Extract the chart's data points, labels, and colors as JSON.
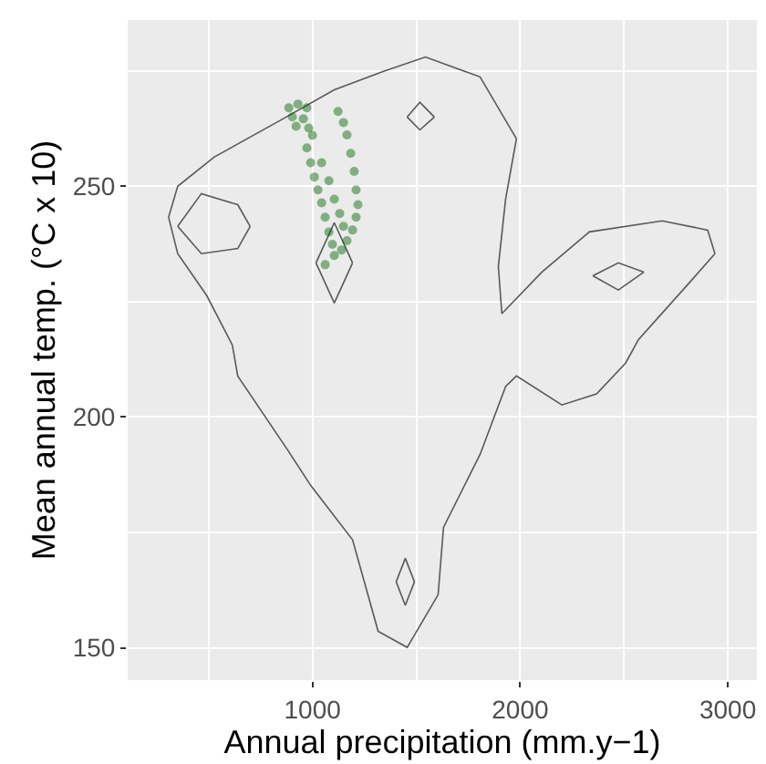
{
  "chart_data": {
    "type": "line",
    "xlabel": "Annual precipitation (mm.y−1)",
    "ylabel": "Mean annual temp. (°C x 10)",
    "xlim": [
      110,
      3140
    ],
    "ylim": [
      143,
      286
    ],
    "xticks": [
      1000,
      2000,
      3000
    ],
    "yticks": [
      150,
      200,
      250
    ],
    "grid": true,
    "series": [
      {
        "color": "#595959",
        "x": [
          307,
          351,
          526,
          842,
          1105,
          1342,
          1544,
          1807,
          1982
        ],
        "values": [
          243.3,
          250,
          256.3,
          264.2,
          270.9,
          274.9,
          278,
          273.7,
          260.3
        ]
      },
      {
        "color": "#595959",
        "x": [
          1982,
          1930,
          1895,
          1912,
          2105,
          2333,
          2684,
          2903,
          2938
        ],
        "values": [
          260.3,
          247.2,
          232.6,
          222.4,
          231.4,
          240.1,
          242.5,
          240.5,
          235.4
        ]
      },
      {
        "color": "#595959",
        "x": [
          307,
          351,
          491,
          614,
          640,
          877,
          991,
          1193,
          1316,
          1456,
          1605,
          1631,
          1807,
          1930,
          1982,
          2201,
          2368,
          2508,
          2570,
          2807,
          2938
        ],
        "values": [
          243.3,
          235.4,
          226.3,
          215.6,
          208.9,
          193.1,
          185.2,
          173.4,
          153.6,
          150.1,
          161.5,
          176.1,
          191.9,
          206.6,
          208.9,
          202.6,
          205,
          211.7,
          216.8,
          228.7,
          235.4
        ]
      },
      {
        "color": "#595959",
        "x": [
          2350,
          2473,
          2596
        ],
        "values": [
          230.6,
          233.4,
          231.4
        ]
      },
      {
        "color": "#595959",
        "x": [
          2350,
          2473,
          2596
        ],
        "values": [
          230.6,
          227.5,
          231.4
        ]
      },
      {
        "color": "#595959",
        "x": [
          351,
          465,
          640,
          700
        ],
        "values": [
          241.3,
          248.4,
          246,
          241.3
        ]
      },
      {
        "color": "#595959",
        "x": [
          351,
          465,
          640,
          700
        ],
        "values": [
          241.3,
          235.4,
          236.5,
          241.3
        ]
      },
      {
        "color": "#595959",
        "x": [
          1456,
          1517,
          1587
        ],
        "values": [
          265,
          268.2,
          265
        ]
      },
      {
        "color": "#595959",
        "x": [
          1456,
          1517,
          1587
        ],
        "values": [
          265,
          262.2,
          265
        ]
      },
      {
        "color": "#595959",
        "x": [
          1403,
          1447,
          1491
        ],
        "values": [
          164.3,
          169.4,
          164.3
        ]
      },
      {
        "color": "#595959",
        "x": [
          1403,
          1447,
          1491
        ],
        "values": [
          164.3,
          159.2,
          164.3
        ]
      },
      {
        "color": "#595959",
        "x": [
          1017,
          1105,
          1193
        ],
        "values": [
          233.4,
          242.1,
          233.4
        ]
      },
      {
        "color": "#595959",
        "x": [
          1017,
          1105,
          1193
        ],
        "values": [
          233.4,
          224.7,
          233.4
        ]
      },
      {
        "type": "scatter",
        "color": "#006400",
        "marker": "circle",
        "x": [
          886,
          930,
          973,
          903,
          956,
          921,
          982,
          1000,
          973,
          991,
          1009,
          1026,
          1044,
          1061,
          1079,
          1096,
          1105,
          1061,
          1123,
          1149,
          1166,
          1184,
          1201,
          1210,
          1219,
          1210,
          1193,
          1166,
          1140,
          1079,
          1105,
          1131,
          1149,
          1044
        ],
        "values": [
          267,
          267.8,
          267,
          265,
          264.6,
          263,
          262.6,
          261,
          258.3,
          255.1,
          252,
          249.2,
          246.4,
          243.3,
          240.1,
          237.4,
          235,
          233,
          266.2,
          263.8,
          261.1,
          257.1,
          253.2,
          249.2,
          246,
          243.3,
          240.5,
          238.2,
          236.2,
          251.2,
          247.2,
          244.1,
          241.3,
          255.1
        ]
      }
    ]
  }
}
